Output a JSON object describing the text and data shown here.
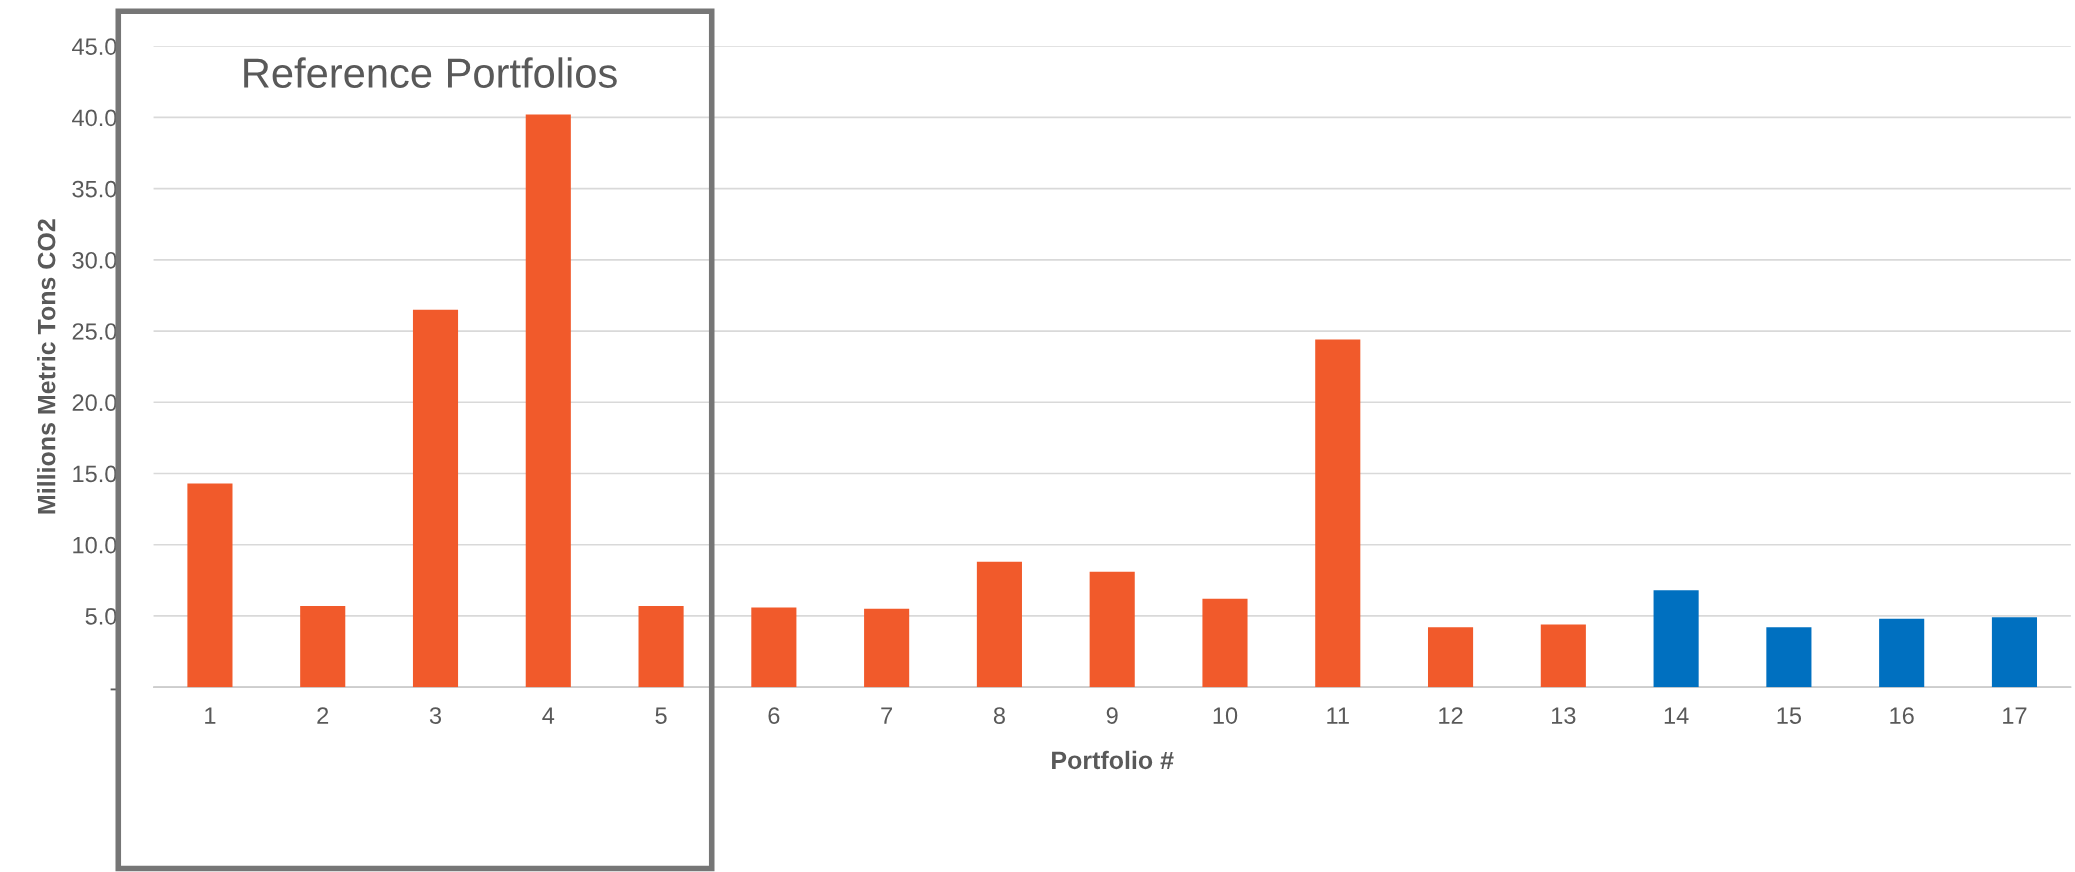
{
  "chart_data": {
    "type": "bar",
    "xlabel": "Portfolio #",
    "ylabel": "Millions Metric Tons CO2",
    "categories": [
      "1",
      "2",
      "3",
      "4",
      "5",
      "6",
      "7",
      "8",
      "9",
      "10",
      "11",
      "12",
      "13",
      "14",
      "15",
      "16",
      "17"
    ],
    "values": [
      14.3,
      5.7,
      26.5,
      40.2,
      5.7,
      5.6,
      5.5,
      8.8,
      8.1,
      6.2,
      24.4,
      4.2,
      4.4,
      6.8,
      4.2,
      4.8,
      4.9
    ],
    "colors": [
      "#f15a2b",
      "#f15a2b",
      "#f15a2b",
      "#f15a2b",
      "#f15a2b",
      "#f15a2b",
      "#f15a2b",
      "#f15a2b",
      "#f15a2b",
      "#f15a2b",
      "#f15a2b",
      "#f15a2b",
      "#f15a2b",
      "#0070c0",
      "#0070c0",
      "#0070c0",
      "#0070c0"
    ],
    "ylim": [
      0,
      45
    ],
    "yticks": [
      {
        "value": 0,
        "label": "-"
      },
      {
        "value": 5,
        "label": "5.0"
      },
      {
        "value": 10,
        "label": "10.0"
      },
      {
        "value": 15,
        "label": "15.0"
      },
      {
        "value": 20,
        "label": "20.0"
      },
      {
        "value": 25,
        "label": "25.0"
      },
      {
        "value": 30,
        "label": "30.0"
      },
      {
        "value": 35,
        "label": "35.0"
      },
      {
        "value": 40,
        "label": "40.0"
      },
      {
        "value": 45,
        "label": "45.0"
      }
    ],
    "grid": "y",
    "annotations": [
      "Reference Portfolios"
    ]
  }
}
